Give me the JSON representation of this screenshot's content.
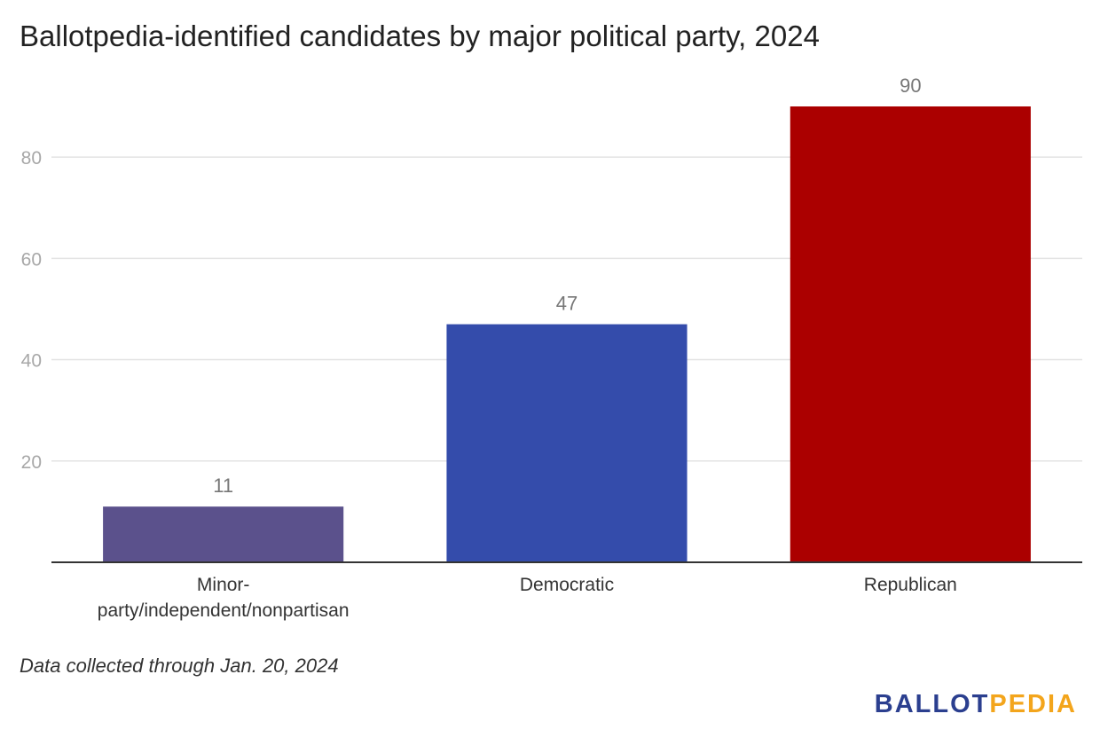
{
  "chart_data": {
    "type": "bar",
    "title": "Ballotpedia-identified candidates by major political party, 2024",
    "categories": [
      "Minor-party/independent/nonpartisan",
      "Democratic",
      "Republican"
    ],
    "category_label_lines": [
      [
        "Minor-",
        "party/independent/nonpartisan"
      ],
      [
        "Democratic"
      ],
      [
        "Republican"
      ]
    ],
    "values": [
      11,
      47,
      90
    ],
    "data_labels": [
      "11",
      "47",
      "90"
    ],
    "colors": [
      "#5b518c",
      "#344cab",
      "#ab0000"
    ],
    "ylim": [
      0,
      90
    ],
    "yticks": [
      20,
      40,
      60,
      80
    ],
    "xlabel": "",
    "ylabel": "",
    "grid": true,
    "legend": "none"
  },
  "footnote": "Data collected through Jan. 20, 2024",
  "logo": {
    "part1": "BALLOT",
    "part2": "PEDIA"
  }
}
